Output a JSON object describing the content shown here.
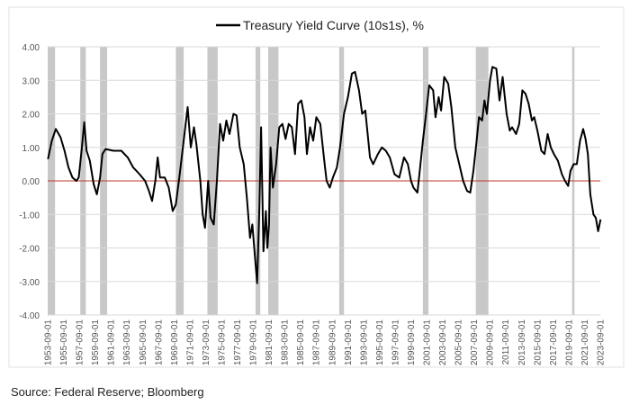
{
  "chart_data": {
    "type": "line",
    "title": "",
    "legend": {
      "label": "Treasury Yield Curve (10s1s), %",
      "placement": "top"
    },
    "xlabel": "",
    "ylabel": "",
    "ylim": [
      -4,
      4
    ],
    "xlim": [
      1953.67,
      2023.67
    ],
    "yticks": [
      "4.00",
      "3.00",
      "2.00",
      "1.00",
      "0.00",
      "-1.00",
      "-2.00",
      "-3.00",
      "-4.00"
    ],
    "xticks": [
      "1953-09-01",
      "1955-09-01",
      "1957-09-01",
      "1959-09-01",
      "1961-09-01",
      "1963-09-01",
      "1965-09-01",
      "1967-09-01",
      "1969-09-01",
      "1971-09-01",
      "1973-09-01",
      "1975-09-01",
      "1977-09-01",
      "1979-09-01",
      "1981-09-01",
      "1983-09-01",
      "1985-09-01",
      "1987-09-01",
      "1989-09-01",
      "1991-09-01",
      "1993-09-01",
      "1995-09-01",
      "1997-09-01",
      "1999-09-01",
      "2001-09-01",
      "2003-09-01",
      "2005-09-01",
      "2007-09-01",
      "2009-09-01",
      "2011-09-01",
      "2013-09-01",
      "2015-09-01",
      "2017-09-01",
      "2019-09-01",
      "2021-09-01",
      "2023-09-01"
    ],
    "grid": true,
    "zero_line_color": "#c0392b",
    "line_color": "#000000",
    "recession_color": "#c8c8c8",
    "recessions": [
      [
        1953.67,
        1954.6
      ],
      [
        1957.8,
        1958.5
      ],
      [
        1960.3,
        1961.2
      ],
      [
        1969.9,
        1970.9
      ],
      [
        1973.9,
        1975.2
      ],
      [
        1980.0,
        1980.6
      ],
      [
        1981.6,
        1982.9
      ],
      [
        1990.6,
        1991.2
      ],
      [
        2001.2,
        2001.9
      ],
      [
        2007.9,
        2009.5
      ],
      [
        2020.1,
        2020.4
      ]
    ],
    "series": [
      {
        "points": [
          [
            1953.7,
            0.65
          ],
          [
            1954.2,
            1.2
          ],
          [
            1954.7,
            1.55
          ],
          [
            1955.3,
            1.3
          ],
          [
            1955.8,
            0.9
          ],
          [
            1956.3,
            0.4
          ],
          [
            1956.8,
            0.1
          ],
          [
            1957.3,
            0.0
          ],
          [
            1957.6,
            0.1
          ],
          [
            1958.0,
            1.0
          ],
          [
            1958.3,
            1.75
          ],
          [
            1958.6,
            0.9
          ],
          [
            1959.0,
            0.6
          ],
          [
            1959.5,
            -0.1
          ],
          [
            1959.9,
            -0.4
          ],
          [
            1960.3,
            0.1
          ],
          [
            1960.6,
            0.8
          ],
          [
            1961.0,
            0.95
          ],
          [
            1962.0,
            0.9
          ],
          [
            1963.0,
            0.9
          ],
          [
            1963.8,
            0.7
          ],
          [
            1964.5,
            0.4
          ],
          [
            1965.3,
            0.2
          ],
          [
            1966.0,
            0.0
          ],
          [
            1966.5,
            -0.3
          ],
          [
            1966.9,
            -0.6
          ],
          [
            1967.3,
            0.0
          ],
          [
            1967.6,
            0.7
          ],
          [
            1967.9,
            0.1
          ],
          [
            1968.5,
            0.1
          ],
          [
            1969.0,
            -0.2
          ],
          [
            1969.5,
            -0.9
          ],
          [
            1969.9,
            -0.7
          ],
          [
            1970.4,
            0.2
          ],
          [
            1970.9,
            1.2
          ],
          [
            1971.4,
            2.2
          ],
          [
            1971.8,
            1.0
          ],
          [
            1972.2,
            1.6
          ],
          [
            1972.5,
            1.1
          ],
          [
            1973.0,
            0.0
          ],
          [
            1973.3,
            -1.0
          ],
          [
            1973.6,
            -1.4
          ],
          [
            1974.0,
            0.0
          ],
          [
            1974.3,
            -1.1
          ],
          [
            1974.7,
            -1.3
          ],
          [
            1975.1,
            0.0
          ],
          [
            1975.5,
            1.7
          ],
          [
            1975.9,
            1.2
          ],
          [
            1976.3,
            1.8
          ],
          [
            1976.7,
            1.4
          ],
          [
            1977.2,
            2.0
          ],
          [
            1977.6,
            1.95
          ],
          [
            1978.0,
            1.0
          ],
          [
            1978.5,
            0.5
          ],
          [
            1978.9,
            -0.5
          ],
          [
            1979.3,
            -1.7
          ],
          [
            1979.6,
            -1.3
          ],
          [
            1979.9,
            -2.2
          ],
          [
            1980.2,
            -3.05
          ],
          [
            1980.5,
            -0.7
          ],
          [
            1980.7,
            1.6
          ],
          [
            1980.9,
            -0.8
          ],
          [
            1981.0,
            -2.1
          ],
          [
            1981.3,
            -0.9
          ],
          [
            1981.5,
            -2.0
          ],
          [
            1981.7,
            -1.3
          ],
          [
            1981.9,
            1.0
          ],
          [
            1982.2,
            -0.2
          ],
          [
            1982.6,
            0.5
          ],
          [
            1983.0,
            1.6
          ],
          [
            1983.4,
            1.7
          ],
          [
            1983.8,
            1.25
          ],
          [
            1984.2,
            1.7
          ],
          [
            1984.6,
            1.6
          ],
          [
            1985.0,
            0.8
          ],
          [
            1985.4,
            2.3
          ],
          [
            1985.8,
            2.4
          ],
          [
            1986.2,
            1.9
          ],
          [
            1986.5,
            0.8
          ],
          [
            1986.9,
            1.6
          ],
          [
            1987.3,
            1.2
          ],
          [
            1987.7,
            1.9
          ],
          [
            1988.2,
            1.7
          ],
          [
            1988.7,
            0.6
          ],
          [
            1989.0,
            0.0
          ],
          [
            1989.4,
            -0.2
          ],
          [
            1989.8,
            0.1
          ],
          [
            1990.3,
            0.4
          ],
          [
            1990.7,
            1.0
          ],
          [
            1991.2,
            2.0
          ],
          [
            1991.7,
            2.5
          ],
          [
            1992.2,
            3.2
          ],
          [
            1992.6,
            3.25
          ],
          [
            1993.1,
            2.7
          ],
          [
            1993.5,
            2.0
          ],
          [
            1993.9,
            2.1
          ],
          [
            1994.5,
            0.7
          ],
          [
            1994.9,
            0.5
          ],
          [
            1995.5,
            0.8
          ],
          [
            1996.0,
            1.0
          ],
          [
            1996.5,
            0.9
          ],
          [
            1997.0,
            0.7
          ],
          [
            1997.6,
            0.2
          ],
          [
            1998.2,
            0.1
          ],
          [
            1998.8,
            0.7
          ],
          [
            1999.3,
            0.5
          ],
          [
            1999.7,
            0.0
          ],
          [
            2000.0,
            -0.2
          ],
          [
            2000.5,
            -0.35
          ],
          [
            2000.8,
            0.3
          ],
          [
            2001.2,
            1.2
          ],
          [
            2001.6,
            2.0
          ],
          [
            2002.0,
            2.85
          ],
          [
            2002.5,
            2.7
          ],
          [
            2002.8,
            1.9
          ],
          [
            2003.2,
            2.5
          ],
          [
            2003.5,
            2.1
          ],
          [
            2003.9,
            3.1
          ],
          [
            2004.4,
            2.9
          ],
          [
            2004.8,
            2.2
          ],
          [
            2005.3,
            1.0
          ],
          [
            2005.8,
            0.5
          ],
          [
            2006.3,
            0.0
          ],
          [
            2006.8,
            -0.3
          ],
          [
            2007.2,
            -0.35
          ],
          [
            2007.6,
            0.3
          ],
          [
            2008.0,
            1.2
          ],
          [
            2008.3,
            1.9
          ],
          [
            2008.7,
            1.8
          ],
          [
            2009.0,
            2.4
          ],
          [
            2009.3,
            2.0
          ],
          [
            2009.7,
            3.0
          ],
          [
            2010.0,
            3.4
          ],
          [
            2010.5,
            3.35
          ],
          [
            2010.9,
            2.4
          ],
          [
            2011.3,
            3.1
          ],
          [
            2011.8,
            2.0
          ],
          [
            2012.2,
            1.5
          ],
          [
            2012.5,
            1.6
          ],
          [
            2013.0,
            1.4
          ],
          [
            2013.4,
            1.7
          ],
          [
            2013.8,
            2.7
          ],
          [
            2014.2,
            2.6
          ],
          [
            2014.6,
            2.3
          ],
          [
            2015.0,
            1.8
          ],
          [
            2015.3,
            1.9
          ],
          [
            2015.7,
            1.5
          ],
          [
            2016.2,
            0.9
          ],
          [
            2016.6,
            0.8
          ],
          [
            2017.0,
            1.4
          ],
          [
            2017.4,
            1.0
          ],
          [
            2017.8,
            0.8
          ],
          [
            2018.3,
            0.6
          ],
          [
            2018.8,
            0.2
          ],
          [
            2019.2,
            0.0
          ],
          [
            2019.6,
            -0.15
          ],
          [
            2019.9,
            0.3
          ],
          [
            2020.3,
            0.5
          ],
          [
            2020.7,
            0.5
          ],
          [
            2021.1,
            1.2
          ],
          [
            2021.5,
            1.55
          ],
          [
            2021.8,
            1.25
          ],
          [
            2022.1,
            0.8
          ],
          [
            2022.4,
            -0.4
          ],
          [
            2022.8,
            -1.0
          ],
          [
            2023.1,
            -1.1
          ],
          [
            2023.4,
            -1.5
          ],
          [
            2023.7,
            -1.15
          ]
        ]
      }
    ]
  },
  "source": "Source: Federal Reserve; Bloomberg"
}
